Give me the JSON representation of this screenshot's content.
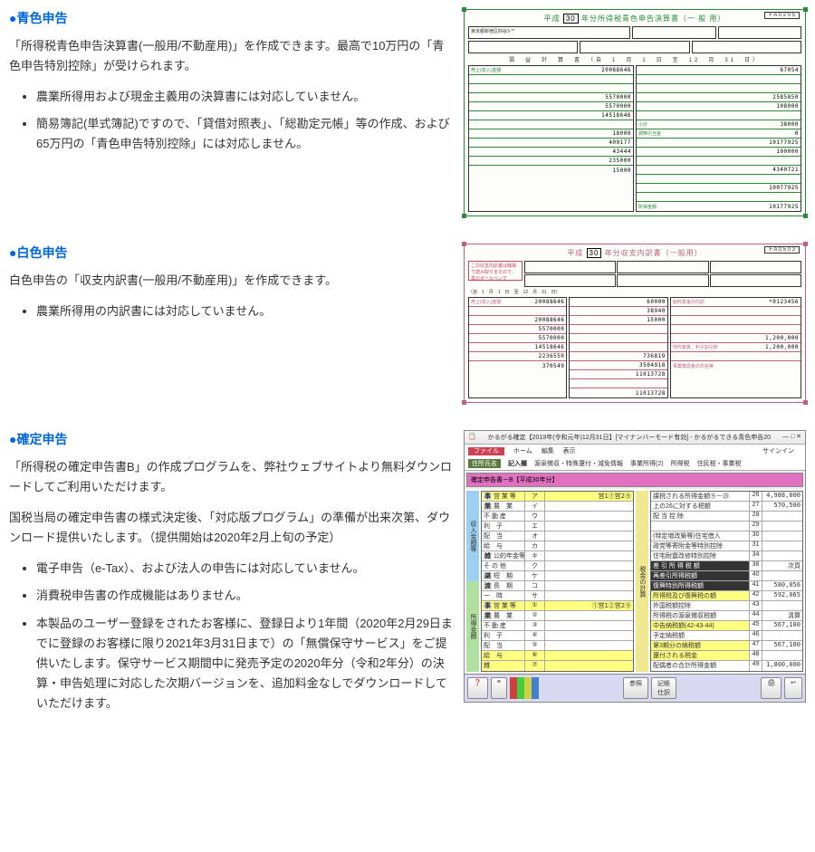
{
  "sections": {
    "blue": {
      "heading": "青色申告",
      "desc": "「所得税青色申告決算書(一般用/不動産用)」を作成できます。最高で10万円の「青色申告特別控除」が受けられます。",
      "notes": [
        "農業所得用および現金主義用の決算書には対応していません。",
        "簡易簿記(単式簿記)ですので、「貸借対照表」、「総勘定元帳」等の作成、および65万円の「青色申告特別控除」には対応しません。"
      ],
      "form": {
        "id": "F A 0 2 0 5",
        "title_pre": "平成",
        "title_year": "30",
        "title_post": "年分所得税青色申告決算書（一 般 用）",
        "addr": "東京都新宿区四谷3-**",
        "left_rows": [
          {
            "l": "売上(収入)金額",
            "n": "20088646"
          },
          {
            "l": "",
            "n": ""
          },
          {
            "l": "",
            "n": ""
          },
          {
            "l": "",
            "n": "5570000"
          },
          {
            "l": "",
            "n": "5570000"
          },
          {
            "l": "",
            "n": "14518646"
          },
          {
            "l": "",
            "n": ""
          },
          {
            "l": "",
            "n": "18000"
          },
          {
            "l": "",
            "n": "409177"
          },
          {
            "l": "",
            "n": "43444"
          },
          {
            "l": "",
            "n": "235000"
          },
          {
            "l": "",
            "n": "15000"
          }
        ],
        "right_rows": [
          {
            "l": "",
            "n": "67054"
          },
          {
            "l": "",
            "n": ""
          },
          {
            "l": "",
            "n": ""
          },
          {
            "l": "",
            "n": "2585850"
          },
          {
            "l": "",
            "n": "108000"
          },
          {
            "l": "",
            "n": ""
          },
          {
            "l": "小計",
            "n": "38000"
          },
          {
            "l": "貸倒引当金",
            "n": "0"
          },
          {
            "l": "",
            "n": "10177925"
          },
          {
            "l": "",
            "n": "100000"
          },
          {
            "l": "",
            "n": ""
          },
          {
            "l": "",
            "n": "4340721"
          },
          {
            "l": "",
            "n": ""
          },
          {
            "l": "",
            "n": "10077925"
          },
          {
            "l": "",
            "n": ""
          },
          {
            "l": "所得金額",
            "n": "10177925"
          }
        ]
      }
    },
    "white": {
      "heading": "白色申告",
      "desc": "白色申告の「収支内訳書(一般用/不動産用)」を作成できます。",
      "notes": [
        "農業所得用の内訳書には対応していません。"
      ],
      "form": {
        "id": "F A 0 5 0 3",
        "title_pre": "平成",
        "title_year": "30",
        "title_post": "年分収支内訳書（一般用）",
        "warn": "この収支内訳書は機械で読み取りますので、黒のボールペンで",
        "left_rows": [
          {
            "l": "売上(収入)金額",
            "n": "20088646"
          },
          {
            "l": "",
            "n": ""
          },
          {
            "l": "",
            "n": "20088646"
          },
          {
            "l": "",
            "n": "5570000"
          },
          {
            "l": "",
            "n": "5570000"
          },
          {
            "l": "",
            "n": "14518646"
          },
          {
            "l": "",
            "n": "2236550"
          },
          {
            "l": "",
            "n": "370549"
          }
        ],
        "mid_rows": [
          {
            "l": "",
            "n": "60000"
          },
          {
            "l": "",
            "n": "38940"
          },
          {
            "l": "",
            "n": "15000"
          },
          {
            "l": "",
            "n": ""
          },
          {
            "l": "",
            "n": ""
          },
          {
            "l": "",
            "n": ""
          },
          {
            "l": "",
            "n": "736819"
          },
          {
            "l": "",
            "n": "3504918"
          },
          {
            "l": "",
            "n": "11013728"
          },
          {
            "l": "",
            "n": ""
          },
          {
            "l": "",
            "n": "11013728"
          }
        ],
        "right_rows": [
          {
            "l": "給料賃金の内訳",
            "n": "*0123456"
          },
          {
            "l": "",
            "n": ""
          },
          {
            "l": "",
            "n": ""
          },
          {
            "l": "",
            "n": ""
          },
          {
            "l": "",
            "n": "1,200,000"
          },
          {
            "l": "地代家賃、利子割引料",
            "n": "1,200,000"
          },
          {
            "l": "",
            "n": ""
          },
          {
            "l": "事業専従者の氏名等",
            "n": ""
          }
        ]
      }
    },
    "final": {
      "heading": "確定申告",
      "desc1": "「所得税の確定申告書B」の作成プログラムを、弊社ウェブサイトより無料ダウンロードしてご利用いただけます。",
      "desc2": "国税当局の確定申告書の様式決定後、「対応版プログラム」の準備が出来次第、ダウンロード提供いたします。（提供開始は2020年2月上旬の予定）",
      "notes": [
        "電子申告（e-Tax）、および法人の申告には対応していません。",
        "消費税申告書の作成機能はありません。",
        "本製品のユーザー登録をされたお客様に、登録日より1年間（2020年2月29日までに登録のお客様に限り2021年3月31日まで）の「無償保守サービス」をご提供いたします。保守サービス期間中に発売予定の2020年分（令和2年分）の決算・申告処理に対応した次期バージョンを、追加料金なしでダウンロードしていただけます。"
      ],
      "app": {
        "title": "かるがる確定【2019年(令和元年)12月31日】[マイナンバーモード有効] - かるがるできる青色申告20",
        "signin": "サインイン",
        "file": "ファイル",
        "menu": [
          "ホーム",
          "編集",
          "表示"
        ],
        "tabs": [
          "記入欄",
          "源泉徴収・特殊還付・減免情報",
          "事業所得(2)",
          "所得税",
          "住民税・事業税"
        ],
        "pink": "確定申告書－B【平成30年分】",
        "left_block_title": "収入金額等",
        "left_rows": [
          {
            "g": "事",
            "l": "営 業 等",
            "c": "ア",
            "suf": "営1①営2⑨",
            "cls": "highlight-y",
            "n": ""
          },
          {
            "g": "業",
            "l": "農　業",
            "c": "イ",
            "n": ""
          },
          {
            "g": "",
            "l": "不 動 産",
            "c": "ウ",
            "n": ""
          },
          {
            "g": "",
            "l": "利　子",
            "c": "エ",
            "n": ""
          },
          {
            "g": "",
            "l": "配　当",
            "c": "オ",
            "n": ""
          },
          {
            "g": "",
            "l": "給　与",
            "c": "カ",
            "n": ""
          },
          {
            "g": "雑",
            "l": "公的年金等",
            "c": "キ",
            "n": ""
          },
          {
            "g": "",
            "l": "そ の 他",
            "c": "ク",
            "n": ""
          },
          {
            "g": "譲",
            "l": "短　期",
            "c": "ケ",
            "n": ""
          },
          {
            "g": "渡",
            "l": "長　期",
            "c": "コ",
            "n": ""
          },
          {
            "g": "",
            "l": "一　時",
            "c": "サ",
            "n": ""
          }
        ],
        "left_block2_title": "所得金額",
        "left_rows2": [
          {
            "g": "事",
            "l": "営 業 等",
            "c": "①",
            "suf": "①営1②営2⑨",
            "cls": "highlight-y",
            "n": ""
          },
          {
            "g": "業",
            "l": "農　業",
            "c": "②",
            "n": ""
          },
          {
            "g": "",
            "l": "不 動 産",
            "c": "③",
            "n": ""
          },
          {
            "g": "",
            "l": "利　子",
            "c": "④",
            "n": ""
          },
          {
            "g": "",
            "l": "配　当",
            "c": "⑤",
            "n": ""
          },
          {
            "g": "",
            "l": "給　与",
            "c": "⑥",
            "cls": "highlight-y",
            "n": ""
          },
          {
            "g": "",
            "l": "雑",
            "c": "⑦",
            "cls": "highlight-y",
            "n": ""
          }
        ],
        "right_rows": [
          {
            "l": "課税される所得金額⑨－㉕",
            "b": "26",
            "n": "4,988,000"
          },
          {
            "l": "上の26に対する税額",
            "b": "27",
            "n": "570,500"
          },
          {
            "l": "配 当 控 除",
            "b": "28",
            "n": ""
          },
          {
            "l": "",
            "b": "29",
            "n": ""
          },
          {
            "l": "(特定増改築等)住宅借入",
            "b": "30",
            "n": ""
          },
          {
            "l": "政党等寄附金等特別控除",
            "b": "31",
            "n": ""
          },
          {
            "l": "住宅耐震改修特別控除",
            "b": "34",
            "n": ""
          },
          {
            "l": "差 引 所 得 税 額",
            "b": "38",
            "cls": "highlight-bk",
            "n": "次頁"
          },
          {
            "l": "再差引所得税額",
            "b": "40",
            "cls": "highlight-bk",
            "n": ""
          },
          {
            "l": "復興特別所得税額",
            "b": "41",
            "cls": "highlight-bk",
            "n": "580,056"
          },
          {
            "l": "所得税及び復興税の額",
            "b": "42",
            "cls": "highlight-y",
            "n": "592,065"
          },
          {
            "l": "外国税額控除",
            "b": "43",
            "n": ""
          },
          {
            "l": "所得税の源泉徴収税額",
            "b": "44",
            "n": "清算"
          },
          {
            "l": "中告納税額(42-43-44)",
            "b": "45",
            "cls": "highlight-y",
            "n": "567,100"
          },
          {
            "l": "予定納税額",
            "b": "46",
            "n": ""
          },
          {
            "l": "第3期分の納税額",
            "b": "47",
            "cls": "highlight-y",
            "n": "567,100"
          },
          {
            "l": "還付される税金",
            "b": "48",
            "cls": "highlight-y",
            "n": ""
          },
          {
            "l": "配偶者の合計所得金額",
            "b": "49",
            "n": "1,800,000"
          }
        ],
        "side_right_top": "税金の計算",
        "bottom": {
          "help": "ヘルプ",
          "ref": "参照",
          "print": "印刷"
        }
      }
    }
  }
}
